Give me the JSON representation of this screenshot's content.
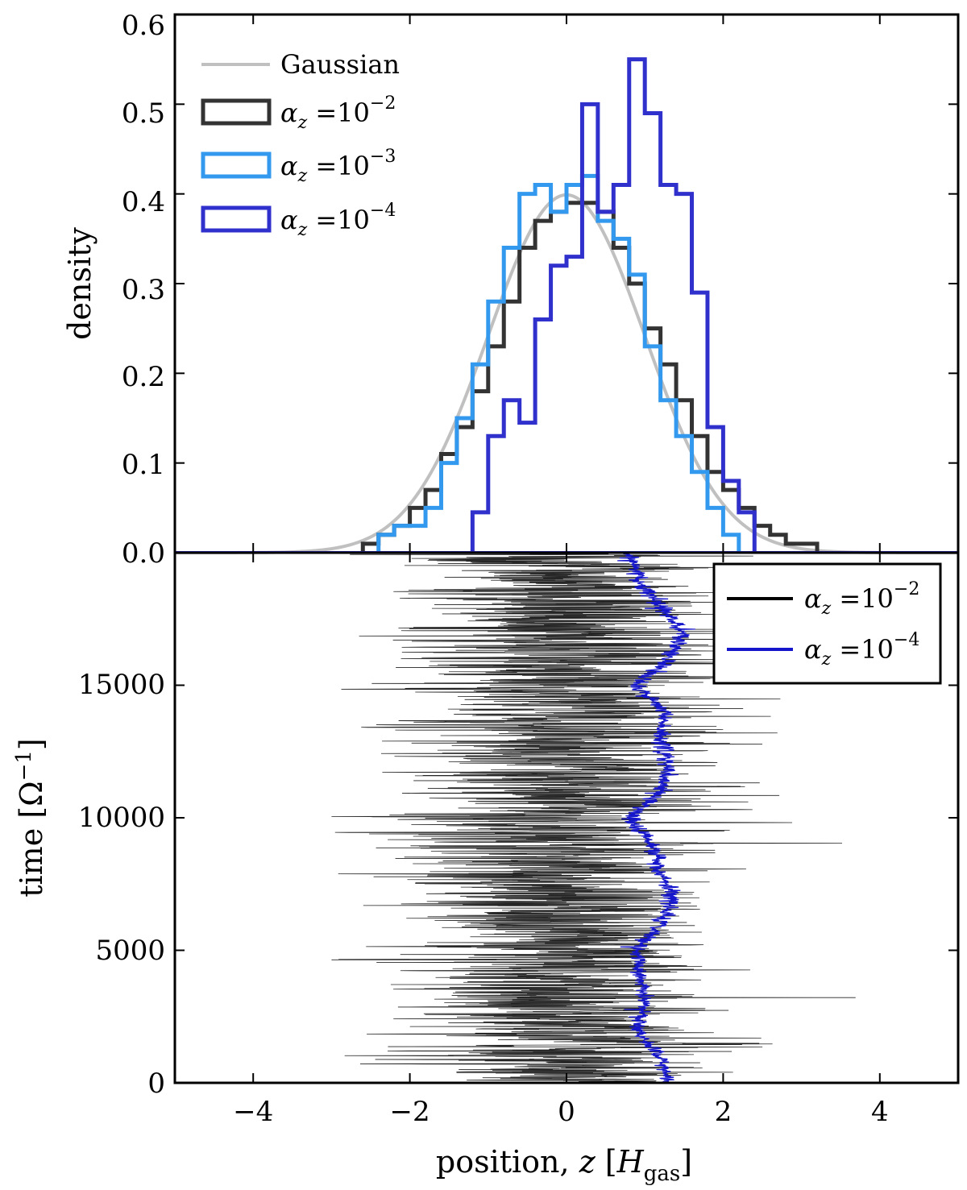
{
  "colors": {
    "gaussian": "#c0c0c0",
    "az_1e2": "#333333",
    "az_1e3": "#3399ee",
    "az_1e4": "#3030cc",
    "trace_black": "#000000",
    "trace_blue": "#1515cc"
  },
  "chart_data": [
    {
      "type": "histogram",
      "panel": "top",
      "title": "",
      "xlabel": "position, z [H_gas]",
      "ylabel": "density",
      "xlim": [
        -5,
        5
      ],
      "ylim": [
        0,
        0.6
      ],
      "xticks": [
        -4,
        -2,
        0,
        2,
        4
      ],
      "yticks": [
        "0.0",
        "0.1",
        "0.2",
        "0.3",
        "0.4",
        "0.5",
        "0.6"
      ],
      "bin_width": 0.2,
      "legend_position": "top-left",
      "gaussian": {
        "name": "Gaussian",
        "mean": 0,
        "sigma": 1
      },
      "series": [
        {
          "name": "αz =10^-2",
          "key": "az_1e2",
          "bin_start": -2.6,
          "values": [
            0.01,
            0.02,
            0.03,
            0.05,
            0.07,
            0.11,
            0.14,
            0.18,
            0.23,
            0.28,
            0.34,
            0.37,
            0.38,
            0.39,
            0.39,
            0.38,
            0.34,
            0.3,
            0.25,
            0.21,
            0.17,
            0.13,
            0.09,
            0.07,
            0.05,
            0.03,
            0.02,
            0.01,
            0.01
          ]
        },
        {
          "name": "αz =10^-3",
          "key": "az_1e3",
          "bin_start": -2.4,
          "values": [
            0.02,
            0.03,
            0.03,
            0.05,
            0.1,
            0.15,
            0.21,
            0.28,
            0.34,
            0.4,
            0.41,
            0.38,
            0.41,
            0.42,
            0.37,
            0.35,
            0.31,
            0.23,
            0.17,
            0.13,
            0.09,
            0.05,
            0.02
          ]
        },
        {
          "name": "αz =10^-4",
          "key": "az_1e4",
          "bin_start": -1.2,
          "values": [
            0.045,
            0.13,
            0.17,
            0.145,
            0.26,
            0.32,
            0.33,
            0.5,
            0.38,
            0.41,
            0.55,
            0.49,
            0.41,
            0.4,
            0.29,
            0.14,
            0.08,
            0.045
          ]
        }
      ],
      "legend": [
        "Gaussian",
        "αz =10^-2",
        "αz =10^-3",
        "αz =10^-4"
      ]
    },
    {
      "type": "line",
      "panel": "bottom",
      "title": "",
      "xlabel": "position, z [H_gas]",
      "ylabel": "time [Ω^-1]",
      "xlim": [
        -5,
        5
      ],
      "ylim": [
        0,
        20000
      ],
      "xticks": [
        -4,
        -2,
        0,
        2,
        4
      ],
      "yticks": [
        0,
        5000,
        10000,
        15000
      ],
      "legend_position": "top-right",
      "series": [
        {
          "name": "αz =10^-2",
          "key": "trace_black",
          "description": "rapidly fluctuating particle position trace spanning roughly z = -3 to 3.8",
          "center": 0,
          "spread": 1.0,
          "z_range": [
            -3.0,
            3.8
          ],
          "n_samples": 2400
        },
        {
          "name": "αz =10^-4",
          "key": "trace_blue",
          "description": "slowly wandering particle position trace",
          "knots_t": [
            0,
            1000,
            2000,
            3000,
            4000,
            5000,
            6000,
            7000,
            8000,
            9000,
            10000,
            11000,
            12000,
            13000,
            14000,
            15000,
            16000,
            17000,
            18000,
            19000,
            20000
          ],
          "knots_z": [
            1.3,
            1.2,
            0.9,
            1.0,
            0.95,
            0.9,
            1.2,
            1.35,
            1.2,
            1.1,
            0.8,
            1.2,
            1.3,
            1.2,
            1.25,
            0.9,
            1.3,
            1.5,
            1.2,
            0.9,
            0.8
          ]
        }
      ],
      "legend": [
        "αz =10^-2",
        "αz =10^-4"
      ]
    }
  ],
  "labels": {
    "top_ylabel": "density",
    "bottom_ylabel_prefix": "time [",
    "bottom_ylabel_omega": "Ω",
    "bottom_ylabel_sup": "−1",
    "bottom_ylabel_suffix": "]",
    "xlabel_prefix": "position, ",
    "xlabel_var": "z",
    "xlabel_open": " [",
    "xlabel_H": "H",
    "xlabel_sub": "gas",
    "xlabel_close": "]"
  },
  "legend_text": {
    "gaussian": "Gaussian",
    "alpha": "α",
    "sub": "z",
    "eq": " =10",
    "exp_2": "−2",
    "exp_3": "−3",
    "exp_4": "−4"
  }
}
